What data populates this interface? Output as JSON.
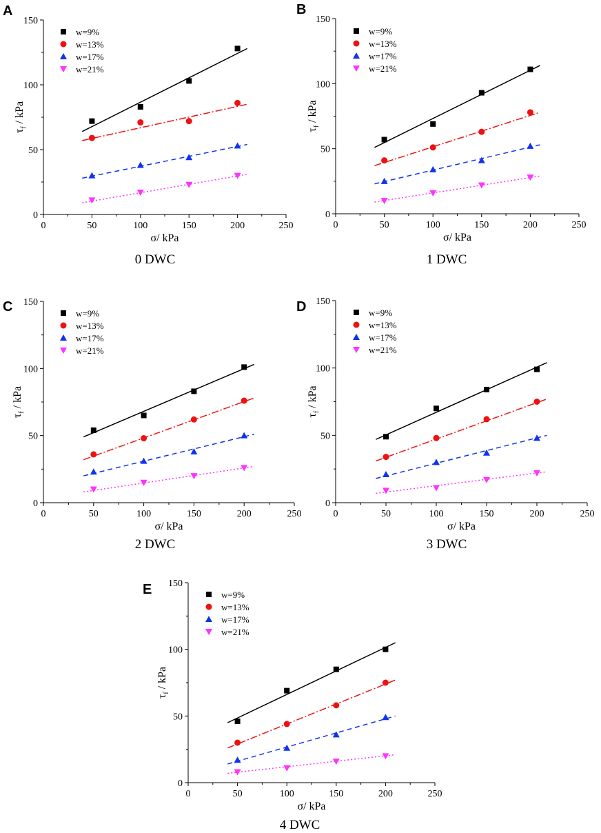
{
  "colors": {
    "w9": "#000000",
    "w13": "#ee1111",
    "w17": "#1133ee",
    "w21": "#ff33ff"
  },
  "legend": [
    "w=9%",
    "w=13%",
    "w=17%",
    "w=21%"
  ],
  "axes": {
    "xlabel": "σ/ kPa",
    "ylabel_main": "τ",
    "ylabel_sub": "f",
    "ylabel_rest": " / kPa",
    "xlim": [
      0,
      250
    ],
    "ylim": [
      0,
      150
    ],
    "xticks": [
      "0",
      "50",
      "100",
      "150",
      "200",
      "250"
    ],
    "yticks": [
      "0",
      "50",
      "100",
      "150"
    ]
  },
  "chart_data": [
    {
      "type": "scatter",
      "panel": "A",
      "caption": "0 DWC",
      "x": [
        50,
        100,
        150,
        200
      ],
      "series": [
        {
          "name": "w=9%",
          "values": [
            72,
            83,
            103,
            128
          ],
          "fit": [
            [
              40,
              64
            ],
            [
              210,
              128
            ]
          ]
        },
        {
          "name": "w=13%",
          "values": [
            59,
            71,
            72,
            86
          ],
          "fit": [
            [
              40,
              57
            ],
            [
              210,
              85
            ]
          ]
        },
        {
          "name": "w=17%",
          "values": [
            30,
            38,
            44,
            53
          ],
          "fit": [
            [
              40,
              28
            ],
            [
              210,
              54
            ]
          ]
        },
        {
          "name": "w=21%",
          "values": [
            11,
            17,
            23,
            30
          ],
          "fit": [
            [
              40,
              9
            ],
            [
              210,
              31
            ]
          ]
        }
      ]
    },
    {
      "type": "scatter",
      "panel": "B",
      "caption": "1 DWC",
      "x": [
        50,
        100,
        150,
        200
      ],
      "series": [
        {
          "name": "w=9%",
          "values": [
            57,
            69,
            93,
            111
          ],
          "fit": [
            [
              40,
              51
            ],
            [
              210,
              114
            ]
          ]
        },
        {
          "name": "w=13%",
          "values": [
            41,
            51,
            63,
            78
          ],
          "fit": [
            [
              40,
              37
            ],
            [
              210,
              78
            ]
          ]
        },
        {
          "name": "w=17%",
          "values": [
            25,
            34,
            41,
            52
          ],
          "fit": [
            [
              40,
              23
            ],
            [
              210,
              53
            ]
          ]
        },
        {
          "name": "w=21%",
          "values": [
            10,
            16,
            22,
            28
          ],
          "fit": [
            [
              40,
              9
            ],
            [
              210,
              29
            ]
          ]
        }
      ]
    },
    {
      "type": "scatter",
      "panel": "C",
      "caption": "2 DWC",
      "x": [
        50,
        100,
        150,
        200
      ],
      "series": [
        {
          "name": "w=9%",
          "values": [
            54,
            65,
            83,
            101
          ],
          "fit": [
            [
              40,
              49
            ],
            [
              210,
              103
            ]
          ]
        },
        {
          "name": "w=13%",
          "values": [
            36,
            48,
            62,
            76
          ],
          "fit": [
            [
              40,
              32
            ],
            [
              210,
              78
            ]
          ]
        },
        {
          "name": "w=17%",
          "values": [
            23,
            31,
            38,
            50
          ],
          "fit": [
            [
              40,
              20
            ],
            [
              210,
              51
            ]
          ]
        },
        {
          "name": "w=21%",
          "values": [
            10,
            15,
            20,
            26
          ],
          "fit": [
            [
              40,
              8
            ],
            [
              210,
              27
            ]
          ]
        }
      ]
    },
    {
      "type": "scatter",
      "panel": "D",
      "caption": "3 DWC",
      "x": [
        50,
        100,
        150,
        200
      ],
      "series": [
        {
          "name": "w=9%",
          "values": [
            49,
            70,
            84,
            99
          ],
          "fit": [
            [
              40,
              47
            ],
            [
              210,
              104
            ]
          ]
        },
        {
          "name": "w=13%",
          "values": [
            34,
            48,
            62,
            75
          ],
          "fit": [
            [
              40,
              31
            ],
            [
              210,
              77
            ]
          ]
        },
        {
          "name": "w=17%",
          "values": [
            21,
            30,
            37,
            48
          ],
          "fit": [
            [
              40,
              18
            ],
            [
              210,
              50
            ]
          ]
        },
        {
          "name": "w=21%",
          "values": [
            9,
            11,
            17,
            22
          ],
          "fit": [
            [
              40,
              7
            ],
            [
              210,
              23
            ]
          ]
        }
      ]
    },
    {
      "type": "scatter",
      "panel": "E",
      "caption": "4 DWC",
      "x": [
        50,
        100,
        150,
        200
      ],
      "series": [
        {
          "name": "w=9%",
          "values": [
            46,
            69,
            85,
            100
          ],
          "fit": [
            [
              40,
              45
            ],
            [
              210,
              105
            ]
          ]
        },
        {
          "name": "w=13%",
          "values": [
            30,
            44,
            58,
            75
          ],
          "fit": [
            [
              40,
              26
            ],
            [
              210,
              77
            ]
          ]
        },
        {
          "name": "w=17%",
          "values": [
            17,
            26,
            36,
            49
          ],
          "fit": [
            [
              40,
              14
            ],
            [
              210,
              50
            ]
          ]
        },
        {
          "name": "w=21%",
          "values": [
            8,
            11,
            16,
            20
          ],
          "fit": [
            [
              40,
              7
            ],
            [
              210,
              21
            ]
          ]
        }
      ]
    }
  ]
}
